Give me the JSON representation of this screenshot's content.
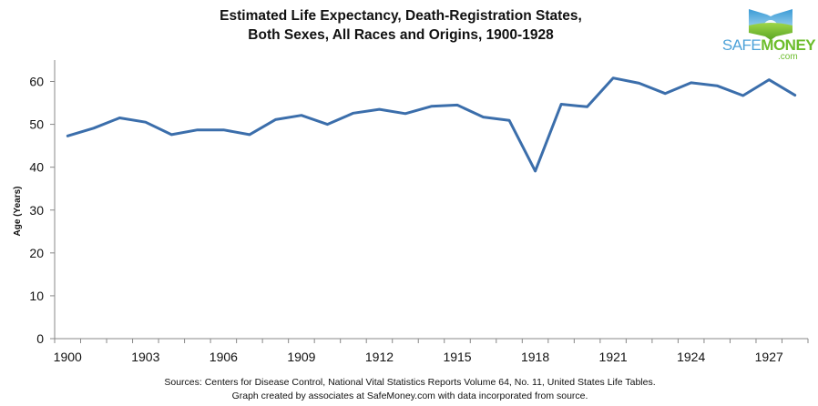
{
  "logo": {
    "brand_prefix": "SAFE",
    "brand_main": "MONEY",
    "brand_suffix": ".com",
    "colors": {
      "blue": "#4fa3d9",
      "green": "#6cbd2c"
    }
  },
  "footer": {
    "line1": "Sources: Centers for Disease Control, National Vital Statistics Reports Volume 64, No. 11, United States Life Tables.",
    "line2": "Graph created by associates at SafeMoney.com with data incorporated from source."
  },
  "chart_data": {
    "type": "line",
    "title": "Estimated Life Expectancy, Death-Registration States, Both Sexes, All Races and Origins, 1900-1928",
    "title_lines": [
      "Estimated Life Expectancy, Death-Registration States,",
      "Both Sexes, All Races and Origins, 1900-1928"
    ],
    "xlabel": "",
    "ylabel": "Age (Years)",
    "ylim": [
      0,
      65
    ],
    "yticks": [
      0,
      10,
      20,
      30,
      40,
      50,
      60
    ],
    "x": [
      1900,
      1901,
      1902,
      1903,
      1904,
      1905,
      1906,
      1907,
      1908,
      1909,
      1910,
      1911,
      1912,
      1913,
      1914,
      1915,
      1916,
      1917,
      1918,
      1919,
      1920,
      1921,
      1922,
      1923,
      1924,
      1925,
      1926,
      1927,
      1928
    ],
    "xtick_labels": [
      "1900",
      "1903",
      "1906",
      "1909",
      "1912",
      "1915",
      "1918",
      "1921",
      "1924",
      "1927"
    ],
    "grid": false,
    "legend": "none",
    "series": [
      {
        "name": "Life Expectancy",
        "color": "#3b6eab",
        "values": [
          47.3,
          49.1,
          51.5,
          50.5,
          47.6,
          48.7,
          48.7,
          47.6,
          51.1,
          52.1,
          50.0,
          52.6,
          53.5,
          52.5,
          54.2,
          54.5,
          51.7,
          50.9,
          39.1,
          54.7,
          54.1,
          60.8,
          59.6,
          57.2,
          59.7,
          59.0,
          56.7,
          60.4,
          56.8
        ]
      }
    ]
  }
}
